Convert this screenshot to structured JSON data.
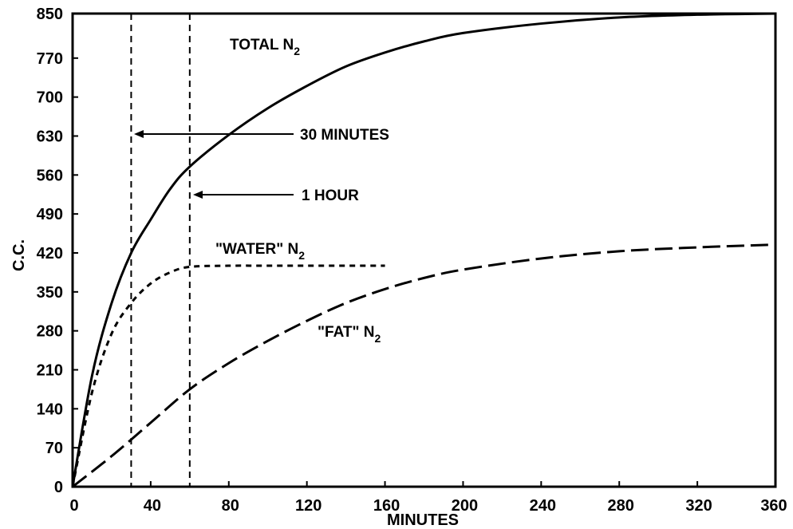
{
  "chart_data": {
    "type": "line",
    "title": "",
    "xlabel": "MINUTES",
    "ylabel": "C.C.",
    "xlim": [
      0,
      360
    ],
    "ylim": [
      0,
      850
    ],
    "grid": false,
    "x_ticks": [
      "0",
      "40",
      "80",
      "120",
      "160",
      "200",
      "240",
      "280",
      "320",
      "360"
    ],
    "y_ticks": [
      "0",
      "70",
      "140",
      "210",
      "280",
      "350",
      "420",
      "490",
      "560",
      "630",
      "700",
      "770",
      "850"
    ],
    "series": [
      {
        "name": "TOTAL N2",
        "label_main": "TOTAL N",
        "label_sub": "2",
        "style": "solid",
        "x": [
          0,
          10,
          20,
          30,
          40,
          50,
          60,
          80,
          100,
          120,
          140,
          160,
          180,
          200,
          240,
          280,
          320,
          360
        ],
        "y": [
          0,
          200,
          330,
          420,
          480,
          535,
          575,
          632,
          680,
          720,
          755,
          780,
          800,
          815,
          832,
          843,
          848,
          850
        ]
      },
      {
        "name": "\"WATER\" N2",
        "label_main": "\"WATER\" N",
        "label_sub": "2",
        "style": "dashed",
        "x": [
          0,
          10,
          20,
          30,
          40,
          50,
          60,
          80,
          100,
          120,
          140,
          160
        ],
        "y": [
          0,
          170,
          275,
          330,
          365,
          385,
          395,
          397,
          397,
          397,
          397,
          397
        ]
      },
      {
        "name": "\"FAT\" N2",
        "label_main": "\"FAT\" N",
        "label_sub": "2",
        "style": "long-dashed",
        "x": [
          0,
          20,
          40,
          60,
          80,
          100,
          120,
          140,
          160,
          180,
          200,
          240,
          280,
          320,
          360
        ],
        "y": [
          0,
          55,
          115,
          175,
          222,
          262,
          298,
          330,
          355,
          375,
          390,
          410,
          423,
          430,
          435
        ]
      }
    ],
    "vlines": [
      {
        "x": 30,
        "label": "30 MINUTES"
      },
      {
        "x": 60,
        "label": "1 HOUR"
      }
    ]
  }
}
